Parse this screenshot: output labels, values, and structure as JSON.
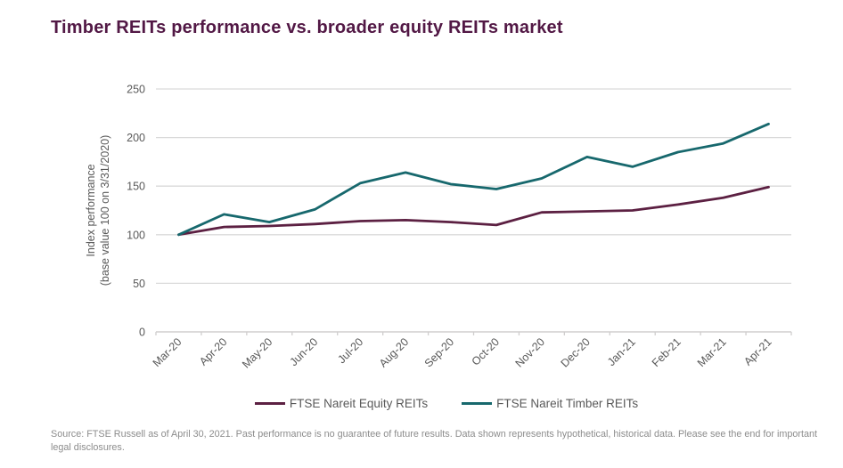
{
  "page": {
    "title": "Timber REITs performance vs. broader equity REITs market"
  },
  "chart_data": {
    "type": "line",
    "title": "Timber REITs performance vs. broader equity REITs market",
    "categories": [
      "Mar-20",
      "Apr-20",
      "May-20",
      "Jun-20",
      "Jul-20",
      "Aug-20",
      "Sep-20",
      "Oct-20",
      "Nov-20",
      "Dec-20",
      "Jan-21",
      "Feb-21",
      "Mar-21",
      "Apr-21"
    ],
    "series": [
      {
        "name": "FTSE Nareit Equity REITs",
        "color": "#5C2042",
        "values": [
          100,
          108,
          109,
          111,
          114,
          115,
          113,
          110,
          123,
          124,
          125,
          131,
          138,
          149
        ]
      },
      {
        "name": "FTSE Nareit Timber REITs",
        "color": "#17686D",
        "values": [
          100,
          121,
          113,
          126,
          153,
          164,
          152,
          147,
          158,
          180,
          170,
          185,
          194,
          214
        ]
      }
    ],
    "xlabel": "",
    "ylabel_line1": "Index performance",
    "ylabel_line2": "(base value 100 on 3/31/2020)",
    "yticks": [
      0,
      50,
      100,
      150,
      200,
      250
    ],
    "ylim": [
      0,
      250
    ],
    "grid": "horizontal",
    "legend_position": "bottom",
    "colors": {
      "title": "#521845",
      "gridline": "#D9D9D9",
      "axis": "#D0CECE",
      "tick_text": "#595959",
      "equity_line": "#5C2042",
      "timber_line": "#17686D"
    }
  },
  "footer": {
    "source_text": "Source: FTSE Russell as of April 30, 2021.  Past performance is no guarantee of future results. Data shown represents hypothetical, historical data. Please see the end for important legal disclosures."
  }
}
